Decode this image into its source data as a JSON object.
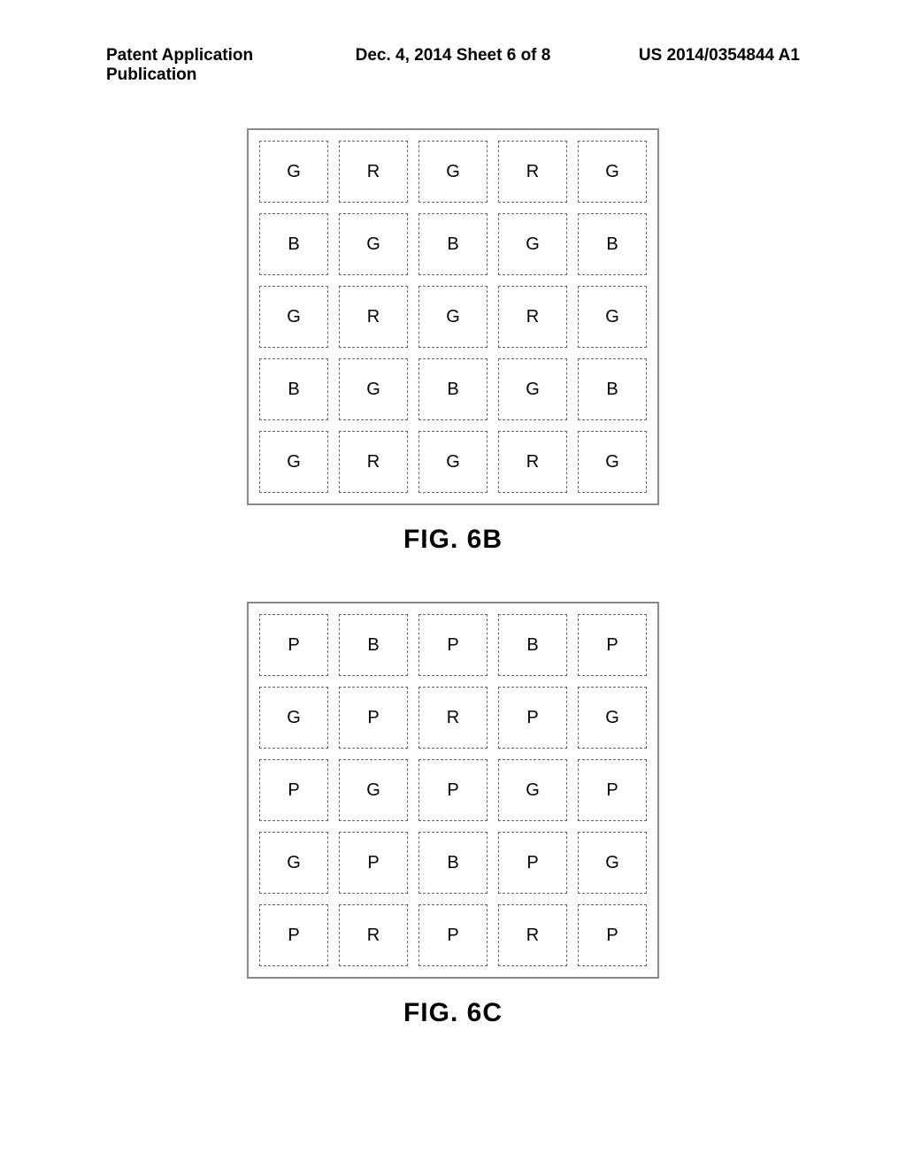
{
  "header": {
    "left": "Patent Application Publication",
    "center": "Dec. 4, 2014  Sheet 6 of 8",
    "right": "US 2014/0354844 A1"
  },
  "figures": {
    "fig6b": {
      "caption": "FIG. 6B",
      "grid": {
        "rows": 5,
        "cols": 5,
        "cell_border_style": "dashed",
        "cell_border_color": "#666666",
        "outer_border_color": "#888888",
        "background_color": "#ffffff",
        "text_color": "#000000",
        "cell_font_size": 20,
        "cells": [
          [
            "G",
            "R",
            "G",
            "R",
            "G"
          ],
          [
            "B",
            "G",
            "B",
            "G",
            "B"
          ],
          [
            "G",
            "R",
            "G",
            "R",
            "G"
          ],
          [
            "B",
            "G",
            "B",
            "G",
            "B"
          ],
          [
            "G",
            "R",
            "G",
            "R",
            "G"
          ]
        ]
      }
    },
    "fig6c": {
      "caption": "FIG. 6C",
      "grid": {
        "rows": 5,
        "cols": 5,
        "cell_border_style": "dashed",
        "cell_border_color": "#666666",
        "outer_border_color": "#888888",
        "background_color": "#ffffff",
        "text_color": "#000000",
        "cell_font_size": 20,
        "cells": [
          [
            "P",
            "B",
            "P",
            "B",
            "P"
          ],
          [
            "G",
            "P",
            "R",
            "P",
            "G"
          ],
          [
            "P",
            "G",
            "P",
            "G",
            "P"
          ],
          [
            "G",
            "P",
            "B",
            "P",
            "G"
          ],
          [
            "P",
            "R",
            "P",
            "R",
            "P"
          ]
        ]
      }
    }
  }
}
